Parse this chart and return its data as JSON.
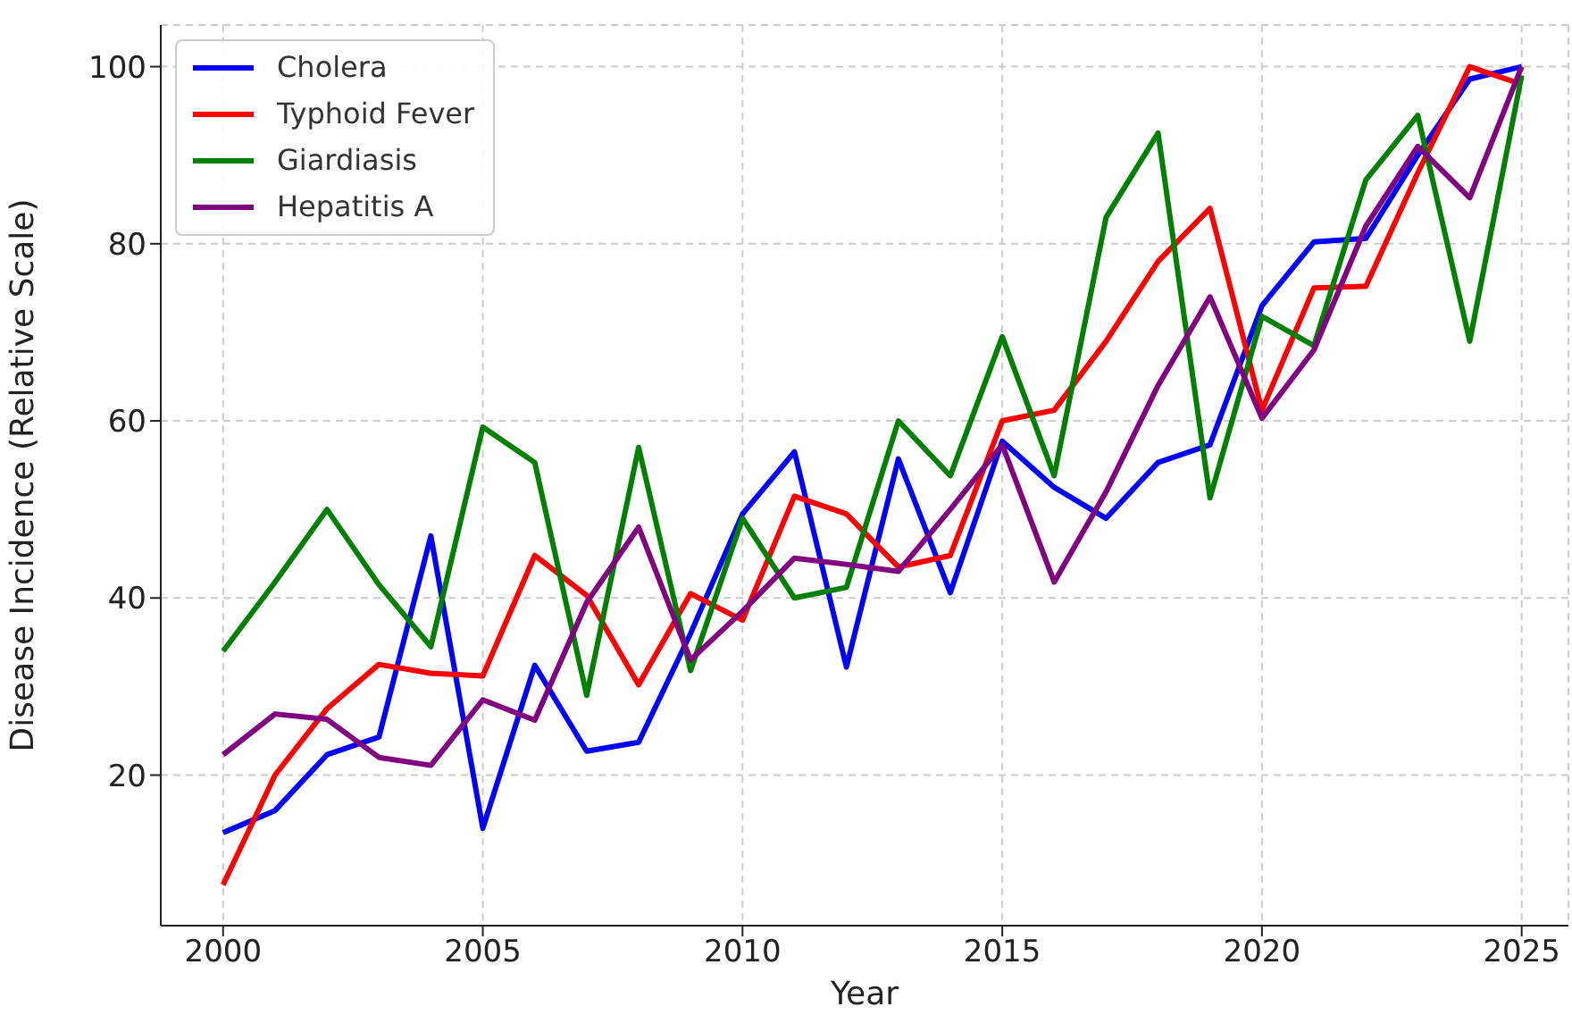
{
  "chart_data": {
    "type": "line",
    "xlabel": "Year",
    "ylabel": "Disease Incidence (Relative Scale)",
    "x": [
      2000,
      2001,
      2002,
      2003,
      2004,
      2005,
      2006,
      2007,
      2008,
      2009,
      2010,
      2011,
      2012,
      2013,
      2014,
      2015,
      2016,
      2017,
      2018,
      2019,
      2020,
      2021,
      2022,
      2023,
      2024,
      2025
    ],
    "series": [
      {
        "name": "Cholera",
        "color": "#0000ff",
        "values": [
          13.5,
          16,
          22.3,
          24.3,
          47,
          14,
          32.4,
          22.7,
          23.7,
          36,
          49.5,
          56.5,
          32.2,
          55.7,
          40.6,
          57.7,
          52.5,
          49,
          55.3,
          57.3,
          73,
          80.2,
          80.6,
          90,
          98.6,
          100
        ]
      },
      {
        "name": "Typhoid Fever",
        "color": "#ff0000",
        "values": [
          7.6,
          20,
          27.5,
          32.5,
          31.5,
          31.2,
          44.8,
          40.3,
          30.2,
          40.5,
          37.5,
          51.5,
          49.5,
          43.5,
          44.8,
          60,
          61.2,
          69,
          78,
          84,
          61.2,
          75,
          75.2,
          88,
          100,
          98
        ]
      },
      {
        "name": "Giardiasis",
        "color": "#008000",
        "values": [
          34,
          41.8,
          50,
          41.5,
          34.5,
          59.3,
          55.3,
          29,
          57,
          31.8,
          49,
          40,
          41.2,
          60,
          53.8,
          69.5,
          53.8,
          83,
          92.5,
          51.3,
          71.8,
          68.5,
          87.2,
          94.5,
          69,
          99
        ]
      },
      {
        "name": "Hepatitis A",
        "color": "#800080",
        "values": [
          22.3,
          26.9,
          26.3,
          22,
          21.1,
          28.5,
          26.2,
          39.5,
          48,
          33,
          38.5,
          44.5,
          43.8,
          43,
          50,
          57.3,
          41.8,
          52,
          64,
          74,
          60.3,
          68,
          82,
          91,
          85.2,
          100
        ]
      }
    ],
    "xlim": [
      1998.8,
      2025.9
    ],
    "xticks": [
      2000,
      2005,
      2010,
      2015,
      2020,
      2025
    ],
    "ylim": [
      3,
      104.7
    ],
    "yticks": [
      20,
      40,
      60,
      80,
      100
    ],
    "grid": true,
    "legend": "top left",
    "marker": "none",
    "line_style": "solid"
  }
}
